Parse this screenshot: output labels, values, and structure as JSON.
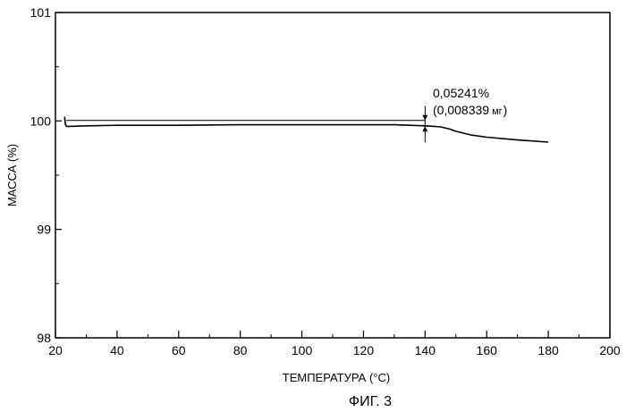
{
  "chart_data": {
    "type": "line",
    "title": "",
    "xlabel": "ТЕМПЕРАТУРА (°С)",
    "ylabel": "МАССА (%)",
    "caption": "ФИГ. 3",
    "xlim": [
      20,
      200
    ],
    "ylim": [
      98,
      101
    ],
    "x_ticks": [
      "20",
      "40",
      "60",
      "80",
      "100",
      "120",
      "140",
      "160",
      "180",
      "200"
    ],
    "y_ticks": [
      "98",
      "99",
      "100",
      "101"
    ],
    "grid": false,
    "series": [
      {
        "x": [
          23.0,
          23.2,
          23.6,
          24.5,
          30,
          40,
          60,
          80,
          100,
          120,
          130,
          135,
          140,
          143,
          145,
          148,
          150,
          155,
          160,
          170,
          180
        ],
        "y": [
          100.04,
          99.97,
          99.95,
          99.95,
          99.955,
          99.96,
          99.96,
          99.965,
          99.965,
          99.965,
          99.965,
          99.96,
          99.955,
          99.95,
          99.945,
          99.925,
          99.905,
          99.87,
          99.85,
          99.825,
          99.805
        ]
      }
    ],
    "reference_line": {
      "x": [
        23.5,
        140
      ],
      "y": 100.005
    },
    "annotation": {
      "x": 140,
      "y_top": 100.005,
      "y_bottom": 99.952,
      "line1": "0,05241%",
      "line2_open": "(0,008339",
      "line2_unit": "мг",
      "line2_close": ")"
    }
  }
}
